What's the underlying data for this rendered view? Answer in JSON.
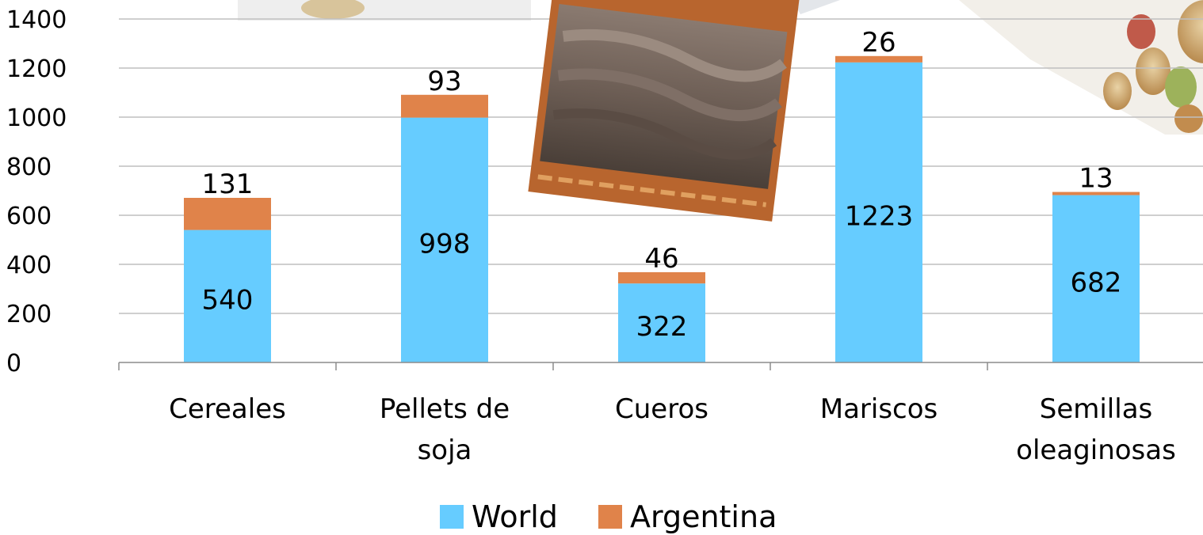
{
  "chart_data": {
    "type": "bar",
    "stacked": true,
    "categories": [
      [
        "Cereales"
      ],
      [
        "Pellets de",
        "soja"
      ],
      [
        "Cueros"
      ],
      [
        "Mariscos"
      ],
      [
        "Semillas",
        "oleaginosas"
      ]
    ],
    "series": [
      {
        "name": "World",
        "color": "#66CCFF",
        "values": [
          540,
          998,
          322,
          1223,
          682
        ]
      },
      {
        "name": "Argentina",
        "color": "#E0834A",
        "values": [
          131,
          93,
          46,
          26,
          13
        ]
      }
    ],
    "ylim": [
      0,
      1400
    ],
    "yticks": [
      "0",
      "200",
      "400",
      "600",
      "800",
      "1000",
      "1200",
      "1400"
    ],
    "grid": true,
    "legend_position": "bottom",
    "title": "",
    "xlabel": "",
    "ylabel": ""
  }
}
